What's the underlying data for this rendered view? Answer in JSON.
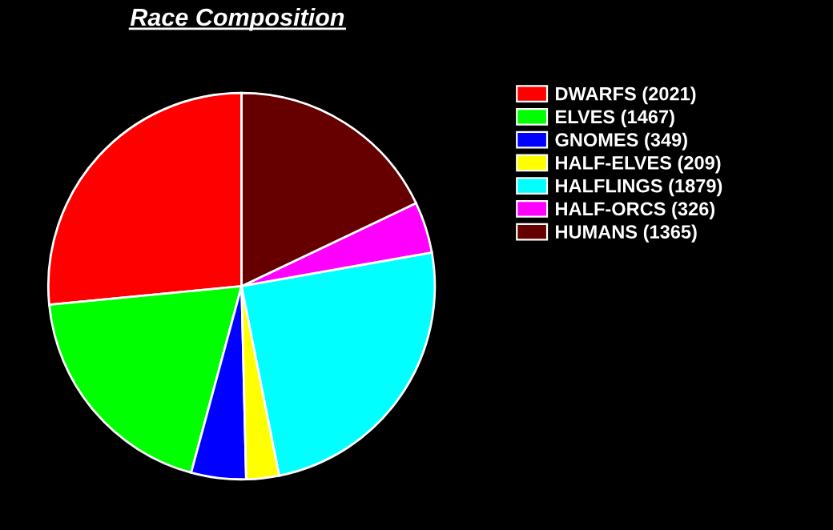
{
  "chart_data": {
    "type": "pie",
    "title": "Race Composition",
    "categories": [
      "DWARFS (2021)",
      "ELVES (1467)",
      "GNOMES (349)",
      "HALF-ELVES (209)",
      "HALFLINGS (1879)",
      "HALF-ORCS (326)",
      "HUMANS (1365)"
    ],
    "values": [
      2021,
      1467,
      349,
      209,
      1879,
      326,
      1365
    ],
    "colors": [
      "#ff0000",
      "#00ff00",
      "#0000ff",
      "#ffff00",
      "#00ffff",
      "#ff00ff",
      "#660000"
    ],
    "legend": "right"
  }
}
